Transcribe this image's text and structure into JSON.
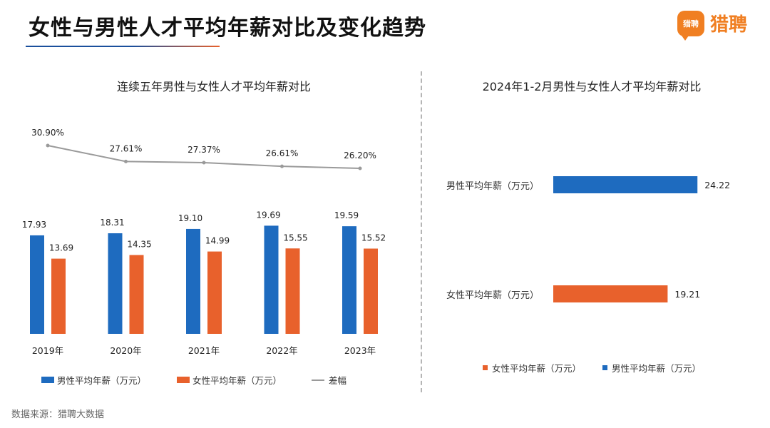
{
  "header": {
    "title": "女性与男性人才平均年薪对比及变化趋势",
    "logo_badge": "猎聘",
    "logo_text": "猎聘"
  },
  "colors": {
    "male": "#1e6bbf",
    "female": "#e8612c",
    "gap_line": "#9a9a9a",
    "accent_blue": "#1a4f9c"
  },
  "chart_data": [
    {
      "type": "bar",
      "title": "连续五年男性与女性人才平均年薪对比",
      "categories": [
        "2019年",
        "2020年",
        "2021年",
        "2022年",
        "2023年"
      ],
      "series": [
        {
          "name": "男性平均年薪（万元）",
          "values": [
            17.93,
            18.31,
            19.1,
            19.69,
            19.59
          ],
          "labels": [
            "17.93",
            "18.31",
            "19.10",
            "19.69",
            "19.59"
          ]
        },
        {
          "name": "女性平均年薪（万元）",
          "values": [
            13.69,
            14.35,
            14.99,
            15.55,
            15.52
          ],
          "labels": [
            "13.69",
            "14.35",
            "14.99",
            "15.55",
            "15.52"
          ]
        },
        {
          "name": "差幅",
          "type": "line",
          "values": [
            30.9,
            27.61,
            27.37,
            26.61,
            26.2
          ],
          "labels": [
            "30.90%",
            "27.61%",
            "27.37%",
            "26.61%",
            "26.20%"
          ]
        }
      ],
      "ylim": [
        0,
        20
      ],
      "line_ylim": [
        0,
        40
      ],
      "legend_position": "bottom"
    },
    {
      "type": "bar",
      "orientation": "horizontal",
      "title": "2024年1-2月男性与女性人才平均年薪对比",
      "categories": [
        "男性平均年薪（万元）",
        "女性平均年薪（万元）"
      ],
      "values": [
        24.22,
        19.21
      ],
      "labels": [
        "24.22",
        "19.21"
      ],
      "xlim": [
        0,
        25
      ],
      "legend": [
        "女性平均年薪（万元）",
        "男性平均年薪（万元）"
      ],
      "legend_position": "bottom"
    }
  ],
  "footer": {
    "source": "数据来源：猎聘大数据"
  }
}
